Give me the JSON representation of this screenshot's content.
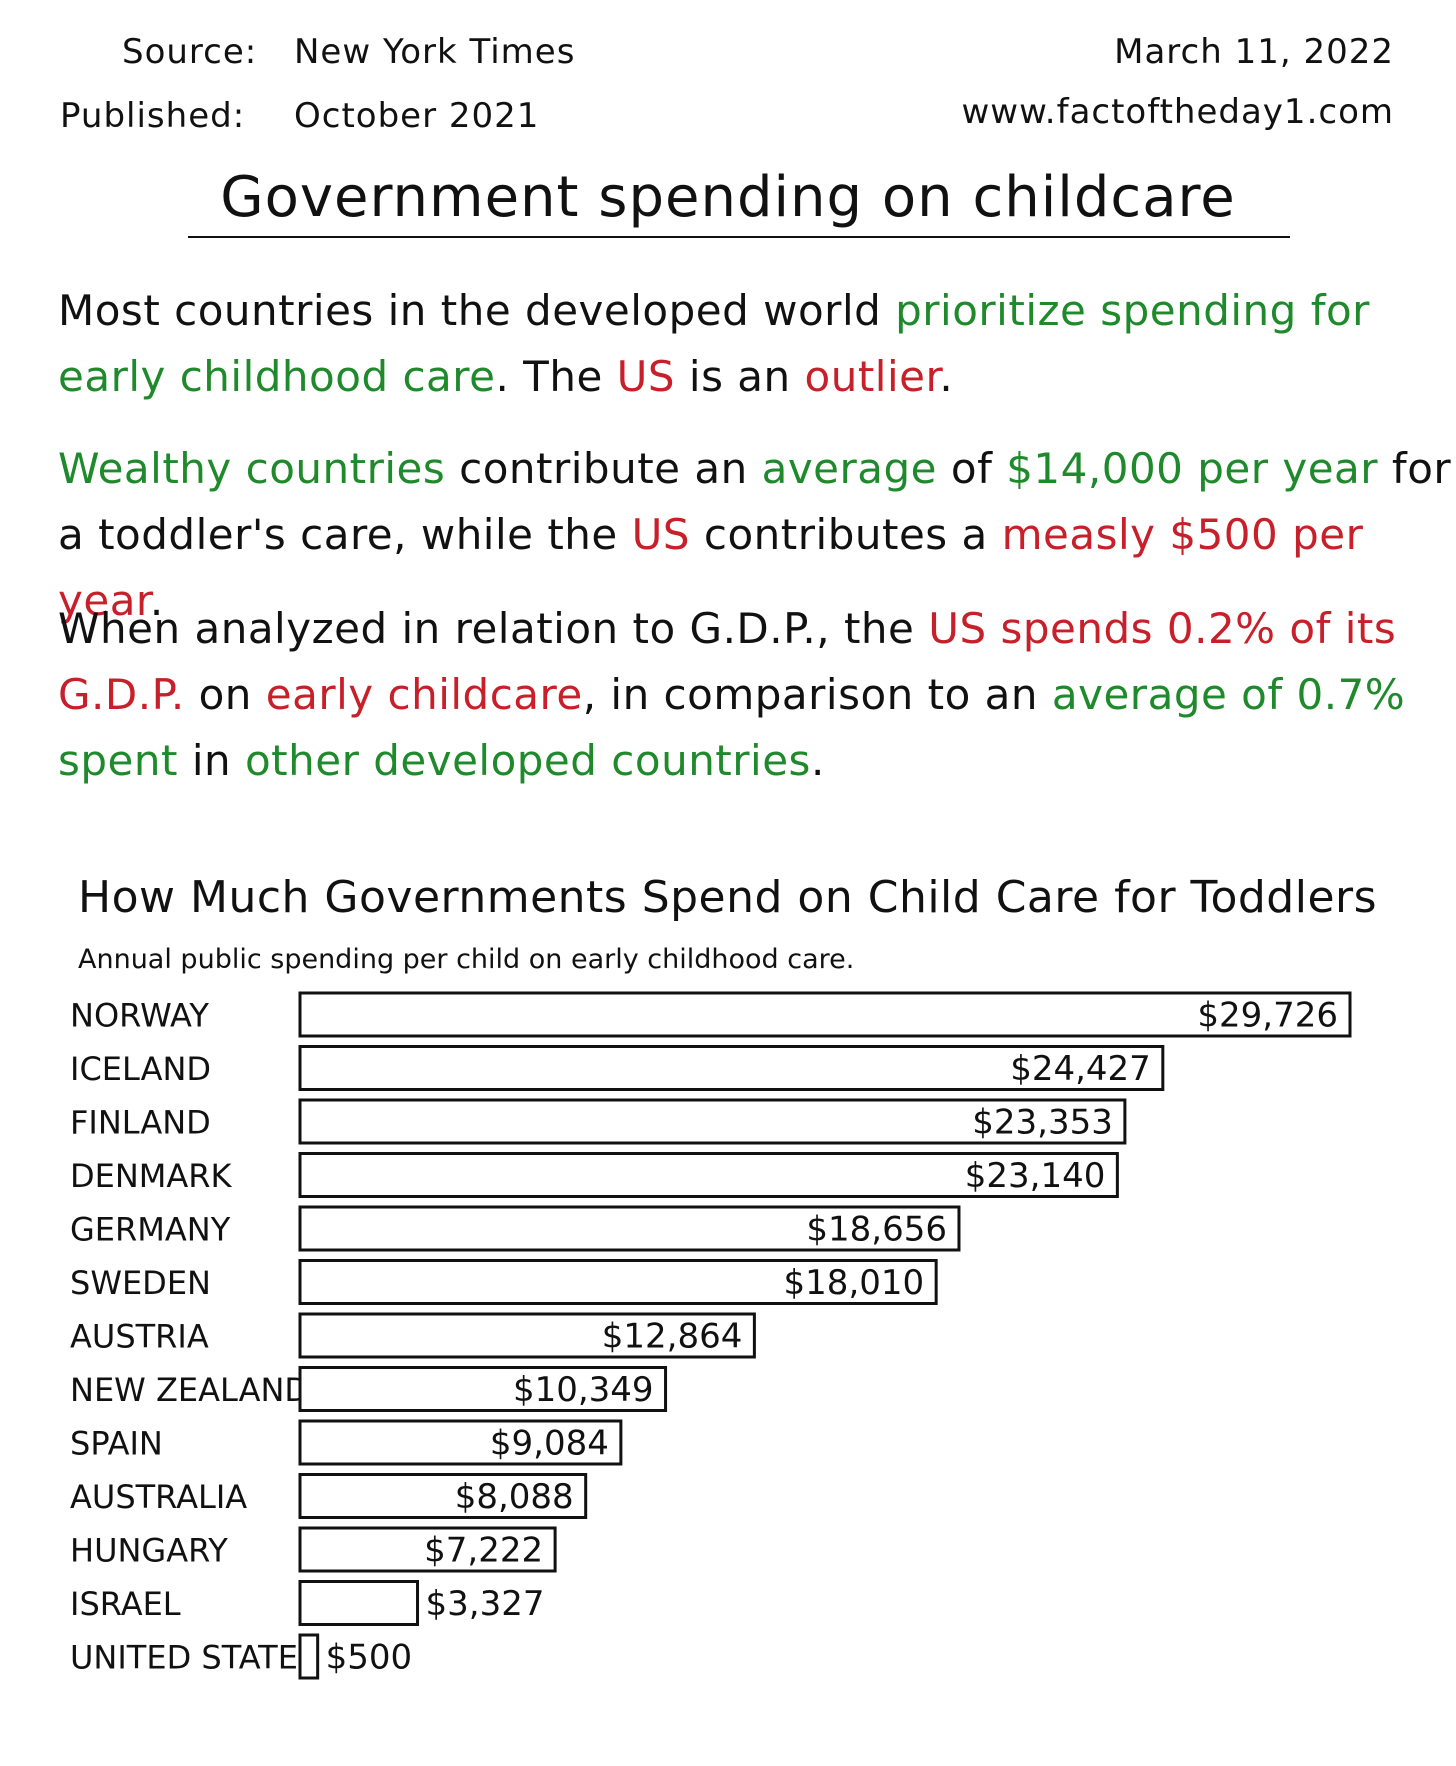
{
  "header": {
    "source_label": "Source:",
    "source_value": "New York Times",
    "published_label": "Published:",
    "published_value": "October 2021",
    "date": "March 11, 2022",
    "website": "www.factoftheday1.com"
  },
  "title": "Government spending on childcare",
  "paragraphs": {
    "p1": {
      "t1": "Most countries in the developed world ",
      "g1": "prioritize spending for early childhood care",
      "t2": ". The ",
      "r1": "US",
      "t3": " is an ",
      "r2": "outlier",
      "t4": "."
    },
    "p2": {
      "g1": "Wealthy countries",
      "t1": " contribute an ",
      "g2": "average",
      "t2": " of ",
      "g3": "$14,000 per year",
      "t3": " for a toddler's care, while the ",
      "r1": "US",
      "t4": " contributes a ",
      "r2": "measly $500 per year",
      "t5": "."
    },
    "p3": {
      "t1": "When analyzed in relation to G.D.P., the ",
      "r1": "US spends 0.2% of its G.D.P.",
      "t2": " on ",
      "r2": "early childcare",
      "t3": ", in comparison to an ",
      "g1": "average of 0.7% spent",
      "t4": " in ",
      "g2": "other developed countries",
      "t5": "."
    }
  },
  "colors": {
    "highlight_green": "#1f8a2c",
    "highlight_red": "#c8202a",
    "bar_outline": "#111111"
  },
  "chart_data": {
    "type": "bar",
    "orientation": "horizontal",
    "title": "How Much Governments Spend on Child Care for Toddlers",
    "subtitle": "Annual public spending per child on early childhood care.",
    "categories": [
      "NORWAY",
      "ICELAND",
      "FINLAND",
      "DENMARK",
      "GERMANY",
      "SWEDEN",
      "AUSTRIA",
      "NEW ZEALAND",
      "SPAIN",
      "AUSTRALIA",
      "HUNGARY",
      "ISRAEL",
      "UNITED STATES"
    ],
    "values": [
      29726,
      24427,
      23353,
      23140,
      18656,
      18010,
      12864,
      10349,
      9084,
      8088,
      7222,
      3327,
      500
    ],
    "value_labels": [
      "$29,726",
      "$24,427",
      "$23,353",
      "$23,140",
      "$18,656",
      "$18,010",
      "$12,864",
      "$10,349",
      "$9,084",
      "$8,088",
      "$7,222",
      "$3,327",
      "$500"
    ],
    "xlim": [
      0,
      29726
    ],
    "grid": false,
    "legend": "none"
  }
}
